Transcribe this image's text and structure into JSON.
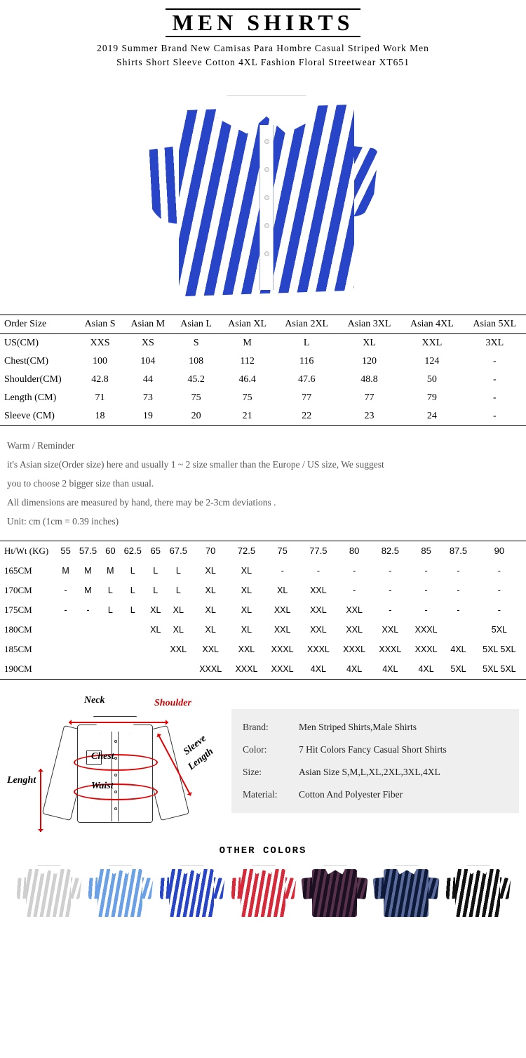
{
  "header": {
    "title": "MEN SHIRTS",
    "subtitle_line1": "2019 Summer Brand New Camisas Para Hombre Casual Striped Work Men",
    "subtitle_line2": "Shirts Short Sleeve Cotton 4XL Fashion Floral Streetwear XT651"
  },
  "hero_shirt": {
    "stripe_color": "#2845c7",
    "stripe_bg": "#ffffff"
  },
  "size_table": {
    "header_row": [
      "Order Size",
      "Asian S",
      "Asian M",
      "Asian L",
      "Asian XL",
      "Asian 2XL",
      "Asian 3XL",
      "Asian 4XL",
      "Asian 5XL"
    ],
    "rows": [
      [
        "US(CM)",
        "XXS",
        "XS",
        "S",
        "M",
        "L",
        "XL",
        "XXL",
        "3XL"
      ],
      [
        "Chest(CM)",
        "100",
        "104",
        "108",
        "112",
        "116",
        "120",
        "124",
        "-"
      ],
      [
        "Shoulder(CM)",
        "42.8",
        "44",
        "45.2",
        "46.4",
        "47.6",
        "48.8",
        "50",
        "-"
      ],
      [
        "Length (CM)",
        "71",
        "73",
        "75",
        "75",
        "77",
        "77",
        "79",
        "-"
      ],
      [
        "Sleeve (CM)",
        "18",
        "19",
        "20",
        "21",
        "22",
        "23",
        "24",
        "-"
      ]
    ]
  },
  "reminder": {
    "heading": "Warm / Reminder",
    "line1": "it's Asian size(Order size) here and usually 1 ~ 2 size smaller than the Europe / US size, We suggest",
    "line2": "you to choose 2 bigger size than usual.",
    "line3": "All dimensions are measured by hand, there may be 2-3cm deviations .",
    "line4": "Unit: cm (1cm = 0.39 inches)"
  },
  "htwt_table": {
    "header_row": [
      "Ht/Wt (KG)",
      "55",
      "57.5",
      "60",
      "62.5",
      "65",
      "67.5",
      "70",
      "72.5",
      "75",
      "77.5",
      "80",
      "82.5",
      "85",
      "87.5",
      "90"
    ],
    "rows": [
      [
        "165CM",
        "M",
        "M",
        "M",
        "L",
        "L",
        "L",
        "XL",
        "XL",
        "-",
        "-",
        "-",
        "-",
        "-",
        "-",
        "-"
      ],
      [
        "170CM",
        "-",
        "M",
        "L",
        "L",
        "L",
        "L",
        "XL",
        "XL",
        "XL",
        "XXL",
        "-",
        "-",
        "-",
        "-",
        "-"
      ],
      [
        "175CM",
        "-",
        "-",
        "L",
        "L",
        "XL",
        "XL",
        "XL",
        "XL",
        "XXL",
        "XXL",
        "XXL",
        "-",
        "-",
        "-",
        "-"
      ],
      [
        "180CM",
        "",
        "",
        "",
        "",
        "XL",
        "XL",
        "XL",
        "XL",
        "XXL",
        "XXL",
        "XXL",
        "XXL",
        "XXXL",
        "",
        "5XL"
      ],
      [
        "185CM",
        "",
        "",
        "",
        "",
        "",
        "XXL",
        "XXL",
        "XXL",
        "XXXL",
        "XXXL",
        "XXXL",
        "XXXL",
        "XXXL",
        "4XL",
        "5XL  5XL"
      ],
      [
        "190CM",
        "",
        "",
        "",
        "",
        "",
        "",
        "XXXL",
        "XXXL",
        "XXXL",
        "4XL",
        "4XL",
        "4XL",
        "4XL",
        "5XL",
        "5XL  5XL"
      ]
    ]
  },
  "diagram_labels": {
    "neck": "Neck",
    "shoulder": "Shoulder",
    "chest": "Chest",
    "waist": "Waist",
    "length": "Lenght",
    "sleeve": "Sleeve",
    "sleeve2": "Length"
  },
  "specs": {
    "brand_k": "Brand:",
    "brand_v": "Men Striped Shirts,Male Shirts",
    "color_k": "Color:",
    "color_v": "7 Hit Colors Fancy Casual Short Shirts",
    "size_k": "Size:",
    "size_v": "Asian Size S,M,L,XL,2XL,3XL,4XL",
    "material_k": "Material:",
    "material_v": "Cotton And Polyester Fiber"
  },
  "other": {
    "title": "OTHER COLORS",
    "colors": [
      {
        "fg": "#cfcfcf",
        "bg": "#ffffff"
      },
      {
        "fg": "#6aa0e6",
        "bg": "#ffffff"
      },
      {
        "fg": "#2845c7",
        "bg": "#ffffff"
      },
      {
        "fg": "#d62a3a",
        "bg": "#ffffff"
      },
      {
        "fg": "#1a1022",
        "bg": "#58314d"
      },
      {
        "fg": "#0e1a3a",
        "bg": "#5a6a9a"
      },
      {
        "fg": "#111111",
        "bg": "#ffffff"
      }
    ]
  }
}
